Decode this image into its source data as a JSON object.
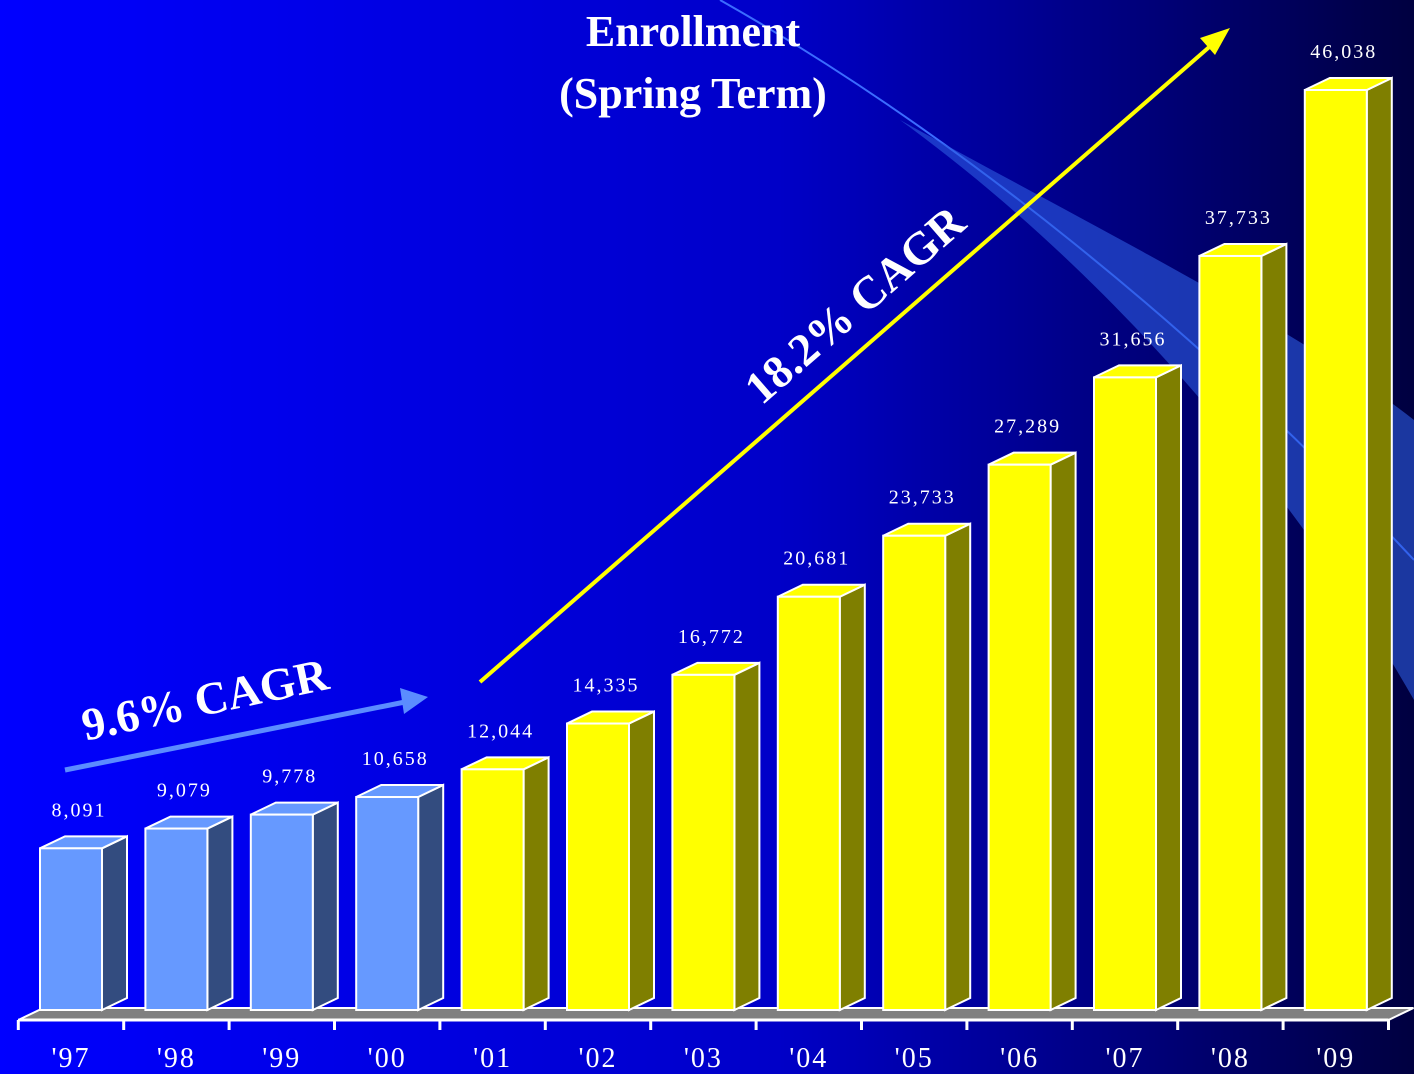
{
  "chart_data": {
    "type": "bar3d",
    "title": "Enrollment",
    "subtitle": "(Spring Term)",
    "categories": [
      "'97",
      "'98",
      "'99",
      "'00",
      "'01",
      "'02",
      "'03",
      "'04",
      "'05",
      "'06",
      "'07",
      "'08",
      "'09"
    ],
    "values": [
      8091,
      9079,
      9778,
      10658,
      12044,
      14335,
      16772,
      20681,
      23733,
      27289,
      31656,
      37733,
      46038
    ],
    "value_labels": [
      "8,091",
      "9,079",
      "9,778",
      "10,658",
      "12,044",
      "14,335",
      "16,772",
      "20,681",
      "23,733",
      "27,289",
      "31,656",
      "37,733",
      "46,038"
    ],
    "colors": [
      "#6699ff",
      "#6699ff",
      "#6699ff",
      "#6699ff",
      "#ffff00",
      "#ffff00",
      "#ffff00",
      "#ffff00",
      "#ffff00",
      "#ffff00",
      "#ffff00",
      "#ffff00",
      "#ffff00"
    ],
    "annotations": [
      "9.6% CAGR",
      "18.2% CAGR"
    ]
  }
}
